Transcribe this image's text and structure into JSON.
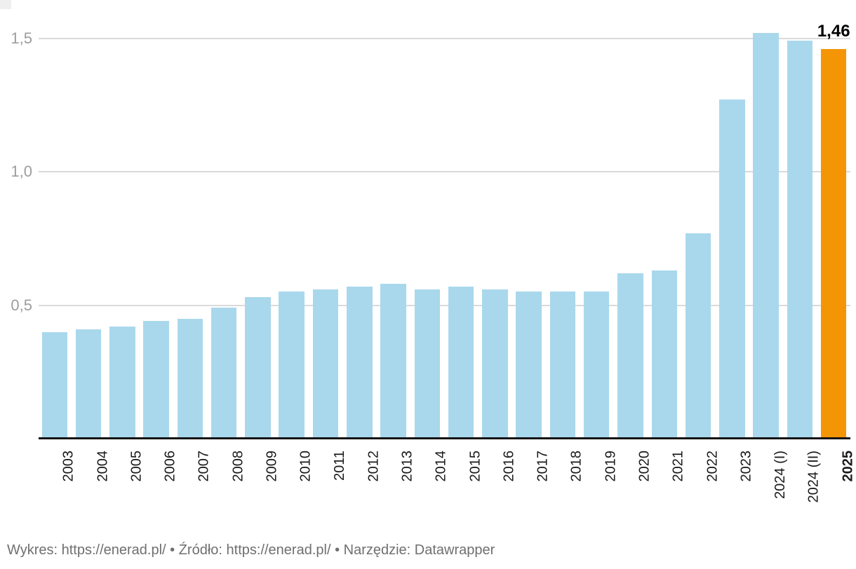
{
  "chart_data": {
    "type": "bar",
    "categories": [
      "2003",
      "2004",
      "2005",
      "2006",
      "2007",
      "2008",
      "2009",
      "2010",
      "2011",
      "2012",
      "2013",
      "2014",
      "2015",
      "2016",
      "2017",
      "2018",
      "2019",
      "2020",
      "2021",
      "2022",
      "2023",
      "2024 (I)",
      "2024 (II)",
      "2025"
    ],
    "values": [
      0.4,
      0.41,
      0.42,
      0.44,
      0.45,
      0.49,
      0.53,
      0.55,
      0.56,
      0.57,
      0.58,
      0.56,
      0.57,
      0.56,
      0.55,
      0.55,
      0.55,
      0.62,
      0.63,
      0.77,
      1.27,
      1.52,
      1.49,
      1.46
    ],
    "title": "",
    "xlabel": "",
    "ylabel": "",
    "ylim": [
      0,
      1.55
    ],
    "yticks": [
      {
        "value": 0.5,
        "label": "0,5"
      },
      {
        "value": 1.0,
        "label": "1,0"
      },
      {
        "value": 1.5,
        "label": "1,5"
      }
    ],
    "grid": true,
    "legend": false,
    "bar_color": "#a9d8ec",
    "highlight_color": "#f49506",
    "highlight_category": "2025",
    "bold_categories": [
      "2025"
    ],
    "annotations": [
      {
        "category": "2025",
        "text": "1,46"
      }
    ]
  },
  "footer": {
    "separator": " • ",
    "parts": [
      {
        "label": "Wykres: ",
        "link": "https://enerad.pl/"
      },
      {
        "label": "Źródło: ",
        "link": "https://enerad.pl/"
      },
      {
        "label": "Narzędzie: ",
        "link": "Datawrapper"
      }
    ]
  }
}
